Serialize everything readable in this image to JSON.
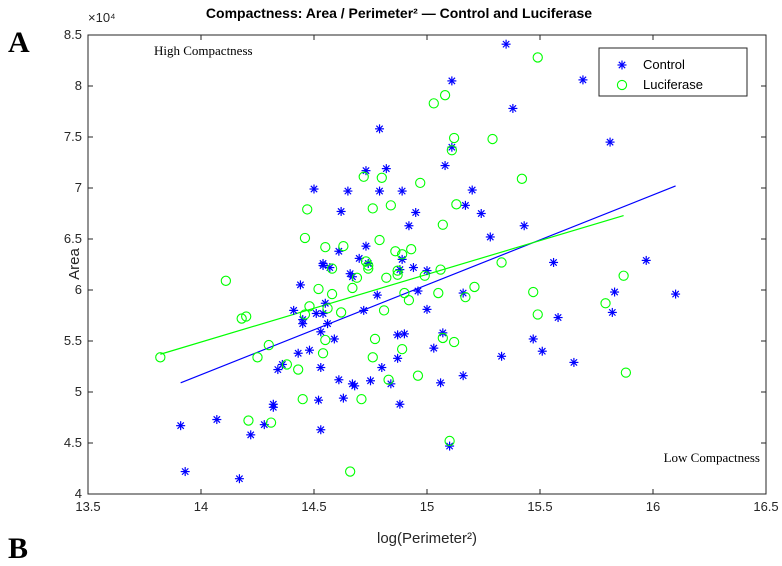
{
  "panel_labels": {
    "a": "A",
    "b": "B"
  },
  "chart_data": {
    "type": "scatter",
    "title": "Compactness: Area / Perimeter² — Control and Luciferase",
    "xlabel": "log(Perimeter²)",
    "ylabel": "Area",
    "y_exponent_label": "×10⁴",
    "xlim": [
      13.5,
      16.5
    ],
    "ylim": [
      4,
      8.5
    ],
    "xticks": [
      13.5,
      14,
      14.5,
      15,
      15.5,
      16,
      16.5
    ],
    "yticks": [
      4,
      4.5,
      5,
      5.5,
      6,
      6.5,
      7,
      7.5,
      8,
      8.5
    ],
    "grid": false,
    "legend_position": "top-right",
    "annotations": [
      {
        "text": "High Compactness",
        "position": "top-left"
      },
      {
        "text": "Low Compactness",
        "position": "bottom-right"
      }
    ],
    "series": [
      {
        "name": "Control",
        "marker": "asterisk",
        "color": "#0000ff",
        "points": [
          [
            13.91,
            4.67
          ],
          [
            13.93,
            4.22
          ],
          [
            14.07,
            4.73
          ],
          [
            14.17,
            4.15
          ],
          [
            14.22,
            4.58
          ],
          [
            14.28,
            4.68
          ],
          [
            14.32,
            4.85
          ],
          [
            14.32,
            4.88
          ],
          [
            14.34,
            5.22
          ],
          [
            14.36,
            5.27
          ],
          [
            14.41,
            5.8
          ],
          [
            14.43,
            5.38
          ],
          [
            14.44,
            6.05
          ],
          [
            14.45,
            5.71
          ],
          [
            14.45,
            5.67
          ],
          [
            14.48,
            5.41
          ],
          [
            14.5,
            6.99
          ],
          [
            14.51,
            5.77
          ],
          [
            14.52,
            4.92
          ],
          [
            14.53,
            4.63
          ],
          [
            14.53,
            5.24
          ],
          [
            14.53,
            5.59
          ],
          [
            14.54,
            5.77
          ],
          [
            14.54,
            6.26
          ],
          [
            14.54,
            6.24
          ],
          [
            14.55,
            5.87
          ],
          [
            14.56,
            5.67
          ],
          [
            14.57,
            6.22
          ],
          [
            14.59,
            5.52
          ],
          [
            14.61,
            5.12
          ],
          [
            14.61,
            6.38
          ],
          [
            14.62,
            6.77
          ],
          [
            14.63,
            4.94
          ],
          [
            14.65,
            6.97
          ],
          [
            14.66,
            6.16
          ],
          [
            14.67,
            6.13
          ],
          [
            14.67,
            5.08
          ],
          [
            14.68,
            5.06
          ],
          [
            14.7,
            6.31
          ],
          [
            14.72,
            5.8
          ],
          [
            14.73,
            7.17
          ],
          [
            14.73,
            6.43
          ],
          [
            14.74,
            6.26
          ],
          [
            14.75,
            5.11
          ],
          [
            14.78,
            5.95
          ],
          [
            14.79,
            7.58
          ],
          [
            14.79,
            6.97
          ],
          [
            14.8,
            5.24
          ],
          [
            14.82,
            7.19
          ],
          [
            14.84,
            5.08
          ],
          [
            14.87,
            5.33
          ],
          [
            14.87,
            5.56
          ],
          [
            14.88,
            6.2
          ],
          [
            14.88,
            4.88
          ],
          [
            14.89,
            6.97
          ],
          [
            14.89,
            6.3
          ],
          [
            14.9,
            5.57
          ],
          [
            14.92,
            6.63
          ],
          [
            14.94,
            6.22
          ],
          [
            14.95,
            6.76
          ],
          [
            14.96,
            5.99
          ],
          [
            15.0,
            5.81
          ],
          [
            15.0,
            6.19
          ],
          [
            15.03,
            5.43
          ],
          [
            15.06,
            5.09
          ],
          [
            15.07,
            5.58
          ],
          [
            15.08,
            7.22
          ],
          [
            15.1,
            4.47
          ],
          [
            15.11,
            8.05
          ],
          [
            15.11,
            7.4
          ],
          [
            15.16,
            5.16
          ],
          [
            15.16,
            5.97
          ],
          [
            15.17,
            6.83
          ],
          [
            15.2,
            6.98
          ],
          [
            15.24,
            6.75
          ],
          [
            15.28,
            6.52
          ],
          [
            15.33,
            5.35
          ],
          [
            15.35,
            8.41
          ],
          [
            15.38,
            7.78
          ],
          [
            15.43,
            6.63
          ],
          [
            15.47,
            5.52
          ],
          [
            15.51,
            5.4
          ],
          [
            15.56,
            6.27
          ],
          [
            15.58,
            5.73
          ],
          [
            15.65,
            5.29
          ],
          [
            15.69,
            8.06
          ],
          [
            15.81,
            7.45
          ],
          [
            15.82,
            5.78
          ],
          [
            15.83,
            5.98
          ],
          [
            15.97,
            6.29
          ],
          [
            16.1,
            5.96
          ]
        ]
      },
      {
        "name": "Luciferase",
        "marker": "circle",
        "color": "#00ff00",
        "points": [
          [
            13.82,
            5.34
          ],
          [
            14.11,
            6.09
          ],
          [
            14.18,
            5.72
          ],
          [
            14.2,
            5.74
          ],
          [
            14.21,
            4.72
          ],
          [
            14.25,
            5.34
          ],
          [
            14.3,
            5.46
          ],
          [
            14.31,
            4.7
          ],
          [
            14.38,
            5.27
          ],
          [
            14.43,
            5.22
          ],
          [
            14.45,
            4.93
          ],
          [
            14.46,
            6.51
          ],
          [
            14.46,
            5.76
          ],
          [
            14.47,
            6.79
          ],
          [
            14.48,
            5.84
          ],
          [
            14.52,
            6.01
          ],
          [
            14.54,
            5.38
          ],
          [
            14.55,
            6.42
          ],
          [
            14.55,
            5.51
          ],
          [
            14.56,
            5.82
          ],
          [
            14.58,
            6.21
          ],
          [
            14.58,
            5.96
          ],
          [
            14.62,
            5.78
          ],
          [
            14.63,
            6.43
          ],
          [
            14.66,
            4.22
          ],
          [
            14.67,
            6.02
          ],
          [
            14.69,
            6.12
          ],
          [
            14.71,
            4.93
          ],
          [
            14.72,
            7.11
          ],
          [
            14.73,
            6.28
          ],
          [
            14.74,
            6.21
          ],
          [
            14.74,
            6.24
          ],
          [
            14.76,
            5.34
          ],
          [
            14.76,
            6.8
          ],
          [
            14.77,
            5.52
          ],
          [
            14.79,
            6.49
          ],
          [
            14.8,
            7.1
          ],
          [
            14.81,
            5.8
          ],
          [
            14.82,
            6.12
          ],
          [
            14.83,
            5.12
          ],
          [
            14.84,
            6.83
          ],
          [
            14.86,
            6.38
          ],
          [
            14.87,
            6.15
          ],
          [
            14.87,
            6.19
          ],
          [
            14.89,
            5.42
          ],
          [
            14.89,
            6.35
          ],
          [
            14.9,
            5.97
          ],
          [
            14.92,
            5.9
          ],
          [
            14.93,
            6.4
          ],
          [
            14.96,
            5.16
          ],
          [
            14.97,
            7.05
          ],
          [
            14.99,
            6.14
          ],
          [
            15.03,
            7.83
          ],
          [
            15.05,
            5.97
          ],
          [
            15.06,
            6.2
          ],
          [
            15.07,
            6.64
          ],
          [
            15.07,
            5.53
          ],
          [
            15.08,
            7.91
          ],
          [
            15.1,
            4.52
          ],
          [
            15.11,
            7.37
          ],
          [
            15.12,
            7.49
          ],
          [
            15.12,
            5.49
          ],
          [
            15.13,
            6.84
          ],
          [
            15.17,
            5.93
          ],
          [
            15.21,
            6.03
          ],
          [
            15.29,
            7.48
          ],
          [
            15.33,
            6.27
          ],
          [
            15.42,
            7.09
          ],
          [
            15.47,
            5.98
          ],
          [
            15.49,
            8.28
          ],
          [
            15.49,
            5.76
          ],
          [
            15.79,
            5.87
          ],
          [
            15.87,
            6.14
          ],
          [
            15.88,
            5.19
          ]
        ]
      }
    ],
    "fit_lines": [
      {
        "series": "Control",
        "color": "#0000ff",
        "x": [
          13.91,
          16.1
        ],
        "y": [
          5.09,
          7.02
        ]
      },
      {
        "series": "Luciferase",
        "color": "#00ff00",
        "x": [
          13.82,
          15.87
        ],
        "y": [
          5.37,
          6.73
        ]
      }
    ]
  }
}
